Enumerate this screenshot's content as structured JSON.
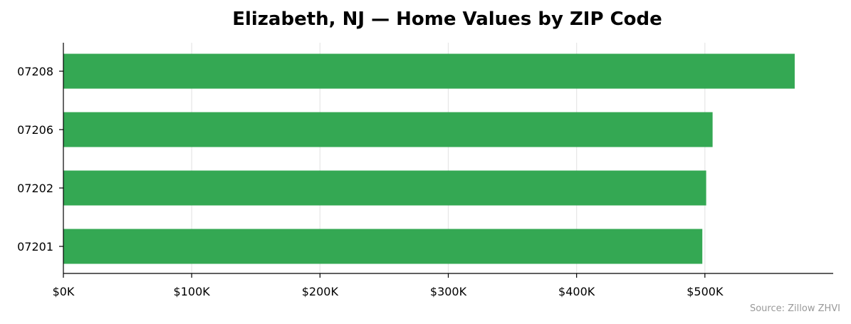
{
  "chart_data": {
    "type": "bar",
    "orientation": "horizontal",
    "title": "Elizabeth, NJ — Home Values by ZIP Code",
    "xlabel": "",
    "ylabel": "",
    "categories": [
      "07201",
      "07202",
      "07206",
      "07208"
    ],
    "values": [
      498000,
      501000,
      506000,
      570000
    ],
    "xlim": [
      0,
      600000
    ],
    "x_ticks": [
      0,
      100000,
      200000,
      300000,
      400000,
      500000
    ],
    "x_tick_labels": [
      "$0K",
      "$100K",
      "$200K",
      "$300K",
      "$400K",
      "$500K"
    ],
    "grid": "vertical",
    "bar_color": "#34a853",
    "grid_color": "#e6e6e6",
    "axis_color": "#000000",
    "legend": "none",
    "source": "Source: Zillow ZHVI"
  }
}
